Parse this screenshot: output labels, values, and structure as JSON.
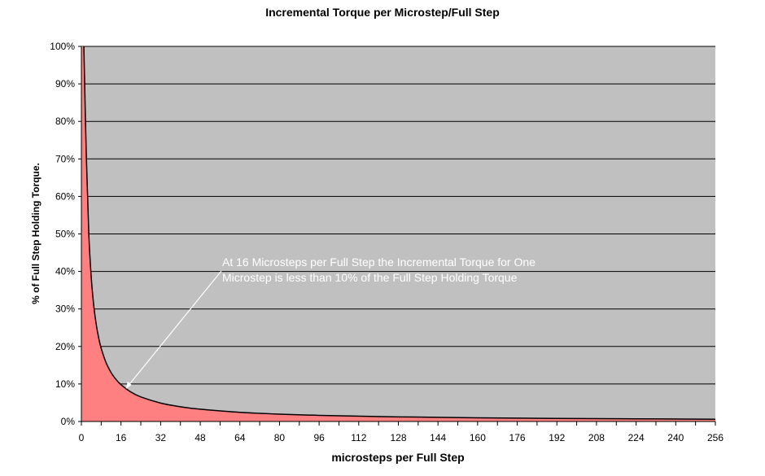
{
  "chart_data": {
    "type": "area",
    "title": "Incremental Torque per Microstep/Full Step",
    "xlabel": "microsteps per Full Step",
    "ylabel": "% of Full Step Holding Torque.",
    "xlim": [
      0,
      256
    ],
    "ylim": [
      0,
      100
    ],
    "x_ticks": [
      "0",
      "16",
      "32",
      "48",
      "64",
      "80",
      "96",
      "112",
      "128",
      "144",
      "160",
      "176",
      "192",
      "208",
      "224",
      "240",
      "256"
    ],
    "y_ticks": [
      "0%",
      "10%",
      "20%",
      "30%",
      "40%",
      "50%",
      "60%",
      "70%",
      "80%",
      "90%",
      "100%"
    ],
    "grid": "horizontal",
    "plot_background": "#C0C0C0",
    "fill_color": "#FF8080",
    "line_color": "#000000",
    "x": [
      1,
      2,
      3,
      4,
      5,
      6,
      7,
      8,
      10,
      12,
      14,
      16,
      20,
      24,
      32,
      40,
      48,
      64,
      80,
      96,
      128,
      160,
      192,
      224,
      256
    ],
    "y": [
      100,
      70.71,
      50,
      38.27,
      30.9,
      25.88,
      22.25,
      19.51,
      15.64,
      13.05,
      11.2,
      9.8,
      7.85,
      6.54,
      4.91,
      3.93,
      3.27,
      2.45,
      1.96,
      1.64,
      1.23,
      0.98,
      0.82,
      0.7,
      0.61
    ],
    "annotation": {
      "lines": [
        "At 16 Microsteps per Full Step the Incremental Torque for One",
        "Microstep is less than 10% of the Full Step Holding Torque"
      ],
      "points_to_x": 18
    }
  }
}
